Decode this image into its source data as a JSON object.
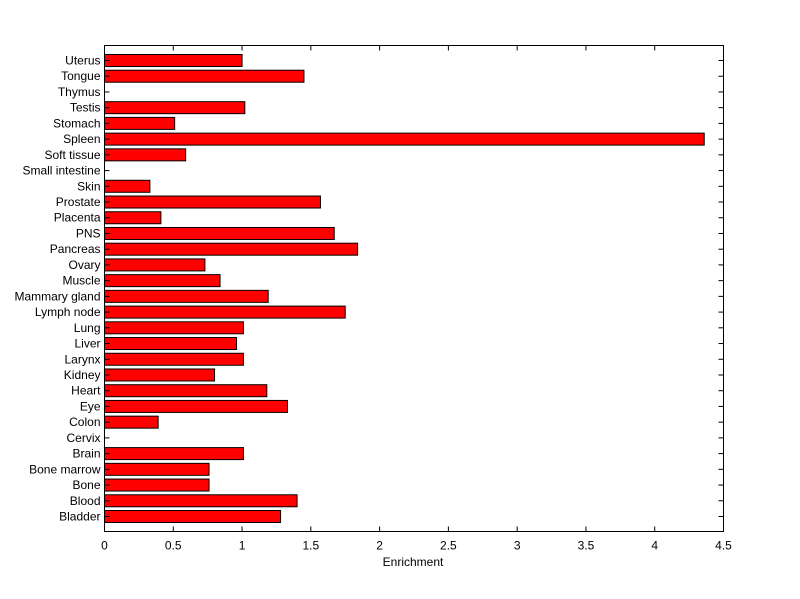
{
  "chart_data": {
    "type": "bar",
    "orientation": "horizontal",
    "categories": [
      "Uterus",
      "Tongue",
      "Thymus",
      "Testis",
      "Stomach",
      "Spleen",
      "Soft tissue",
      "Small intestine",
      "Skin",
      "Prostate",
      "Placenta",
      "PNS",
      "Pancreas",
      "Ovary",
      "Muscle",
      "Mammary gland",
      "Lymph node",
      "Lung",
      "Liver",
      "Larynx",
      "Kidney",
      "Heart",
      "Eye",
      "Colon",
      "Cervix",
      "Brain",
      "Bone marrow",
      "Bone",
      "Blood",
      "Bladder"
    ],
    "values": [
      1.0,
      1.45,
      0,
      1.02,
      0.51,
      4.36,
      0.59,
      0,
      0.33,
      1.57,
      0.41,
      1.67,
      1.84,
      0.73,
      0.84,
      1.19,
      1.75,
      1.01,
      0.96,
      1.01,
      0.8,
      1.18,
      1.33,
      0.39,
      0,
      1.01,
      0.76,
      0.76,
      1.4,
      1.28
    ],
    "xlim": [
      0,
      4.5
    ],
    "xticks": [
      "0",
      "0.5",
      "1",
      "1.5",
      "2",
      "2.5",
      "3",
      "3.5",
      "4",
      "4.5"
    ],
    "xlabel": "Enrichment",
    "ylabel": "",
    "title": "",
    "bar_color": "#ff0000",
    "bar_edge_color": "#000000",
    "grid": false
  }
}
